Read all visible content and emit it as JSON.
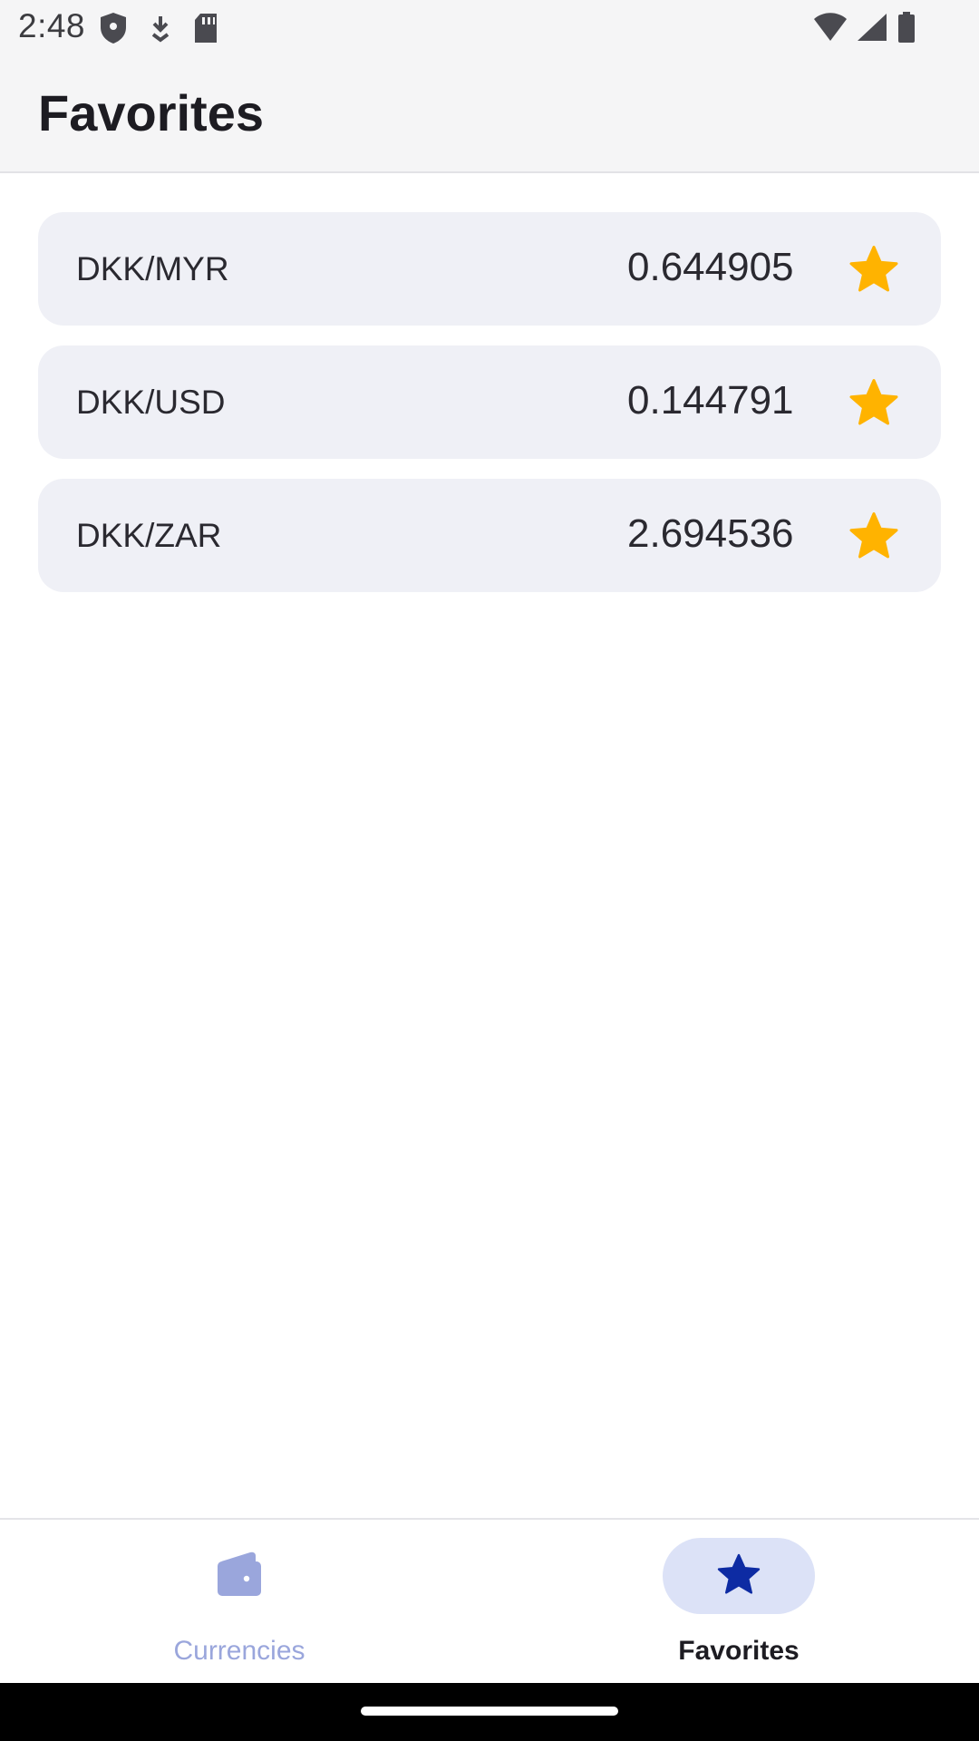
{
  "status_bar": {
    "time": "2:48",
    "left_icons": [
      "shield-icon",
      "download-icon",
      "sd-card-icon"
    ],
    "right_icons": [
      "wifi-icon",
      "signal-icon",
      "battery-icon"
    ]
  },
  "header": {
    "title": "Favorites"
  },
  "favorites": [
    {
      "pair": "DKK/MYR",
      "rate": "0.644905",
      "starred": true
    },
    {
      "pair": "DKK/USD",
      "rate": "0.144791",
      "starred": true
    },
    {
      "pair": "DKK/ZAR",
      "rate": "2.694536",
      "starred": true
    }
  ],
  "bottom_nav": {
    "items": [
      {
        "label": "Currencies",
        "icon": "wallet-icon",
        "active": false
      },
      {
        "label": "Favorites",
        "icon": "star-icon",
        "active": true
      }
    ]
  },
  "colors": {
    "star": "#ffb300",
    "active_nav_icon": "#0d2ba3",
    "inactive_nav": "#9aa6dc",
    "card_bg": "#eff0f6"
  }
}
